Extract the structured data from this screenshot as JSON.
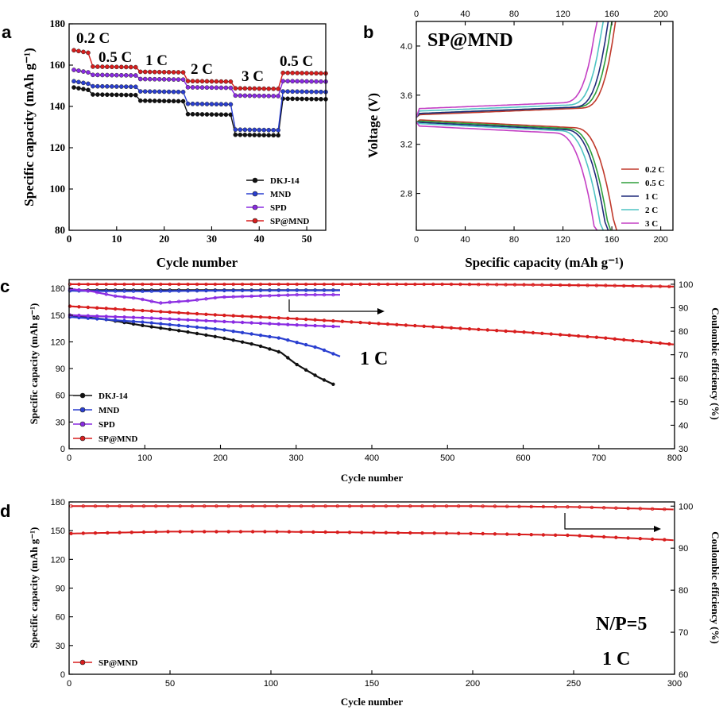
{
  "figure": {
    "panels": [
      {
        "letter": "a",
        "title": "",
        "xlabel": "Cycle number",
        "ylabel": "Specific capacity (mAh g⁻¹)",
        "xticks": [
          "0",
          "10",
          "20",
          "30",
          "40",
          "50"
        ],
        "yticks": [
          "80",
          "100",
          "120",
          "140",
          "160",
          "180"
        ],
        "rate_labels": [
          "0.2 C",
          "0.5 C",
          "1 C",
          "2 C",
          "3 C",
          "0.5 C"
        ],
        "legend": [
          "DKJ-14",
          "MND",
          "SPD",
          "SP@MND"
        ]
      },
      {
        "letter": "b",
        "title": "SP@MND",
        "xlabel": "Specific capacity (mAh g⁻¹)",
        "ylabel": "Voltage (V)",
        "xticks": [
          "0",
          "40",
          "80",
          "120",
          "160",
          "200"
        ],
        "yticks": [
          "2.8",
          "3.2",
          "3.6",
          "4.0"
        ],
        "legend": [
          "0.2 C",
          "0.5 C",
          "1 C",
          "2 C",
          "3 C"
        ]
      },
      {
        "letter": "c",
        "annotation": "1 C",
        "xlabel": "Cycle number",
        "ylabel": "Specific capacity (mAh g⁻¹)",
        "y2label": "Coulombic efficiency (%)",
        "xticks": [
          "0",
          "100",
          "200",
          "300",
          "400",
          "500",
          "600",
          "700",
          "800"
        ],
        "yticks": [
          "0",
          "30",
          "60",
          "90",
          "120",
          "150",
          "180"
        ],
        "y2ticks": [
          "30",
          "40",
          "50",
          "60",
          "70",
          "80",
          "90",
          "100"
        ],
        "legend": [
          "DKJ-14",
          "MND",
          "SPD",
          "SP@MND"
        ]
      },
      {
        "letter": "d",
        "annotation_ratio": "N/P=5",
        "annotation_rate": "1 C",
        "xlabel": "Cycle number",
        "ylabel": "Specific capacity (mAh g⁻¹)",
        "y2label": "Coulombic efficiency (%)",
        "xticks": [
          "0",
          "50",
          "100",
          "150",
          "200",
          "250",
          "300"
        ],
        "yticks": [
          "0",
          "30",
          "60",
          "90",
          "120",
          "150",
          "180"
        ],
        "y2ticks": [
          "60",
          "70",
          "80",
          "90",
          "100"
        ],
        "legend": [
          "SP@MND"
        ]
      }
    ]
  },
  "colors": {
    "DKJ-14": "#111111",
    "MND": "#2a3fd0",
    "SPD": "#8a2be2",
    "SP@MND": "#d81e1e",
    "0.2 C": "#c0392b",
    "0.5 C": "#2e9e3a",
    "1 C": "#1f2a7a",
    "2 C": "#4fc4c4",
    "3 C": "#c43fc4"
  },
  "chart_data": [
    {
      "panel": "a",
      "type": "scatter",
      "title": "",
      "xlabel": "Cycle number",
      "ylabel": "Specific capacity (mAh g⁻¹)",
      "xlim": [
        0,
        54
      ],
      "ylim": [
        80,
        180
      ],
      "rate_steps": [
        {
          "label": "0.2 C",
          "start": 1,
          "end": 4
        },
        {
          "label": "0.5 C",
          "start": 5,
          "end": 14
        },
        {
          "label": "1 C",
          "start": 15,
          "end": 24
        },
        {
          "label": "2 C",
          "start": 25,
          "end": 34
        },
        {
          "label": "3 C",
          "start": 35,
          "end": 44
        },
        {
          "label": "0.5 C",
          "start": 45,
          "end": 54
        }
      ],
      "series": [
        {
          "name": "DKJ-14",
          "levels": [
            148,
            145.5,
            142.5,
            136,
            126,
            143.5
          ]
        },
        {
          "name": "MND",
          "levels": [
            151,
            149.5,
            147,
            141,
            128.5,
            147
          ]
        },
        {
          "name": "SPD",
          "levels": [
            156.5,
            155,
            153,
            149,
            145,
            152
          ]
        },
        {
          "name": "SP@MND",
          "levels": [
            166,
            159,
            156.5,
            152,
            148.5,
            156
          ]
        }
      ]
    },
    {
      "panel": "b",
      "type": "line",
      "title": "SP@MND",
      "xlabel": "Specific capacity (mAh g⁻¹)",
      "ylabel": "Voltage (V)",
      "xlim": [
        0,
        210
      ],
      "ylim": [
        2.5,
        4.2
      ],
      "series": [
        {
          "name": "0.2 C",
          "charge_capacity": 163,
          "discharge_capacity": 164,
          "charge_plateau": 3.44,
          "discharge_plateau": 3.4
        },
        {
          "name": "0.5 C",
          "charge_capacity": 160,
          "discharge_capacity": 159,
          "charge_plateau": 3.45,
          "discharge_plateau": 3.39
        },
        {
          "name": "1 C",
          "charge_capacity": 157,
          "discharge_capacity": 157,
          "charge_plateau": 3.45,
          "discharge_plateau": 3.38
        },
        {
          "name": "2 C",
          "charge_capacity": 153,
          "discharge_capacity": 153,
          "charge_plateau": 3.47,
          "discharge_plateau": 3.37
        },
        {
          "name": "3 C",
          "charge_capacity": 148,
          "discharge_capacity": 148,
          "charge_plateau": 3.49,
          "discharge_plateau": 3.35
        }
      ]
    },
    {
      "panel": "c",
      "type": "scatter",
      "xlabel": "Cycle number",
      "ylabel": "Specific capacity (mAh g⁻¹)",
      "y2label": "Coulombic efficiency (%)",
      "xlim": [
        0,
        800
      ],
      "ylim": [
        0,
        190
      ],
      "y2lim": [
        30,
        102
      ],
      "capacity": [
        {
          "name": "DKJ-14",
          "x": [
            1,
            50,
            100,
            150,
            200,
            250,
            280,
            300,
            330,
            350
          ],
          "y": [
            150,
            145,
            138,
            132,
            125,
            116,
            108,
            95,
            80,
            72
          ]
        },
        {
          "name": "MND",
          "x": [
            1,
            100,
            200,
            280,
            330,
            360
          ],
          "y": [
            148,
            142,
            134,
            124,
            113,
            103
          ]
        },
        {
          "name": "SPD",
          "x": [
            1,
            100,
            200,
            300,
            360
          ],
          "y": [
            150,
            147,
            143,
            139,
            137
          ]
        },
        {
          "name": "SP@MND",
          "x": [
            1,
            100,
            200,
            300,
            400,
            500,
            600,
            700,
            800
          ],
          "y": [
            160,
            155,
            150,
            146,
            141,
            136,
            131,
            125,
            117
          ]
        }
      ],
      "efficiency": [
        {
          "name": "DKJ-14",
          "x": [
            1,
            100,
            200,
            300,
            360
          ],
          "y": [
            97.5,
            97.5,
            97.5,
            97.5,
            97.5
          ]
        },
        {
          "name": "MND",
          "x": [
            1,
            100,
            200,
            300,
            360
          ],
          "y": [
            97.2,
            97,
            97.3,
            97.4,
            97.4
          ]
        },
        {
          "name": "SPD",
          "x": [
            1,
            30,
            60,
            90,
            120,
            160,
            200,
            250,
            300,
            360
          ],
          "y": [
            98,
            97,
            95,
            94,
            92,
            93,
            94.5,
            95,
            95.5,
            95.5
          ]
        },
        {
          "name": "SP@MND",
          "x": [
            1,
            100,
            200,
            300,
            400,
            500,
            600,
            700,
            800
          ],
          "y": [
            100,
            100,
            100,
            100,
            100,
            100,
            99.8,
            99.5,
            99
          ]
        }
      ]
    },
    {
      "panel": "d",
      "type": "scatter",
      "xlabel": "Cycle number",
      "ylabel": "Specific capacity (mAh g⁻¹)",
      "y2label": "Coulombic efficiency (%)",
      "xlim": [
        0,
        300
      ],
      "ylim": [
        0,
        180
      ],
      "y2lim": [
        60,
        101
      ],
      "capacity": [
        {
          "name": "SP@MND",
          "x": [
            1,
            50,
            100,
            150,
            200,
            250,
            300
          ],
          "y": [
            147,
            149,
            149,
            148,
            147,
            145,
            140
          ]
        }
      ],
      "efficiency": [
        {
          "name": "SP@MND",
          "x": [
            1,
            50,
            100,
            150,
            200,
            250,
            300
          ],
          "y": [
            100,
            100,
            100,
            100,
            100,
            99.8,
            99.2
          ]
        }
      ]
    }
  ]
}
